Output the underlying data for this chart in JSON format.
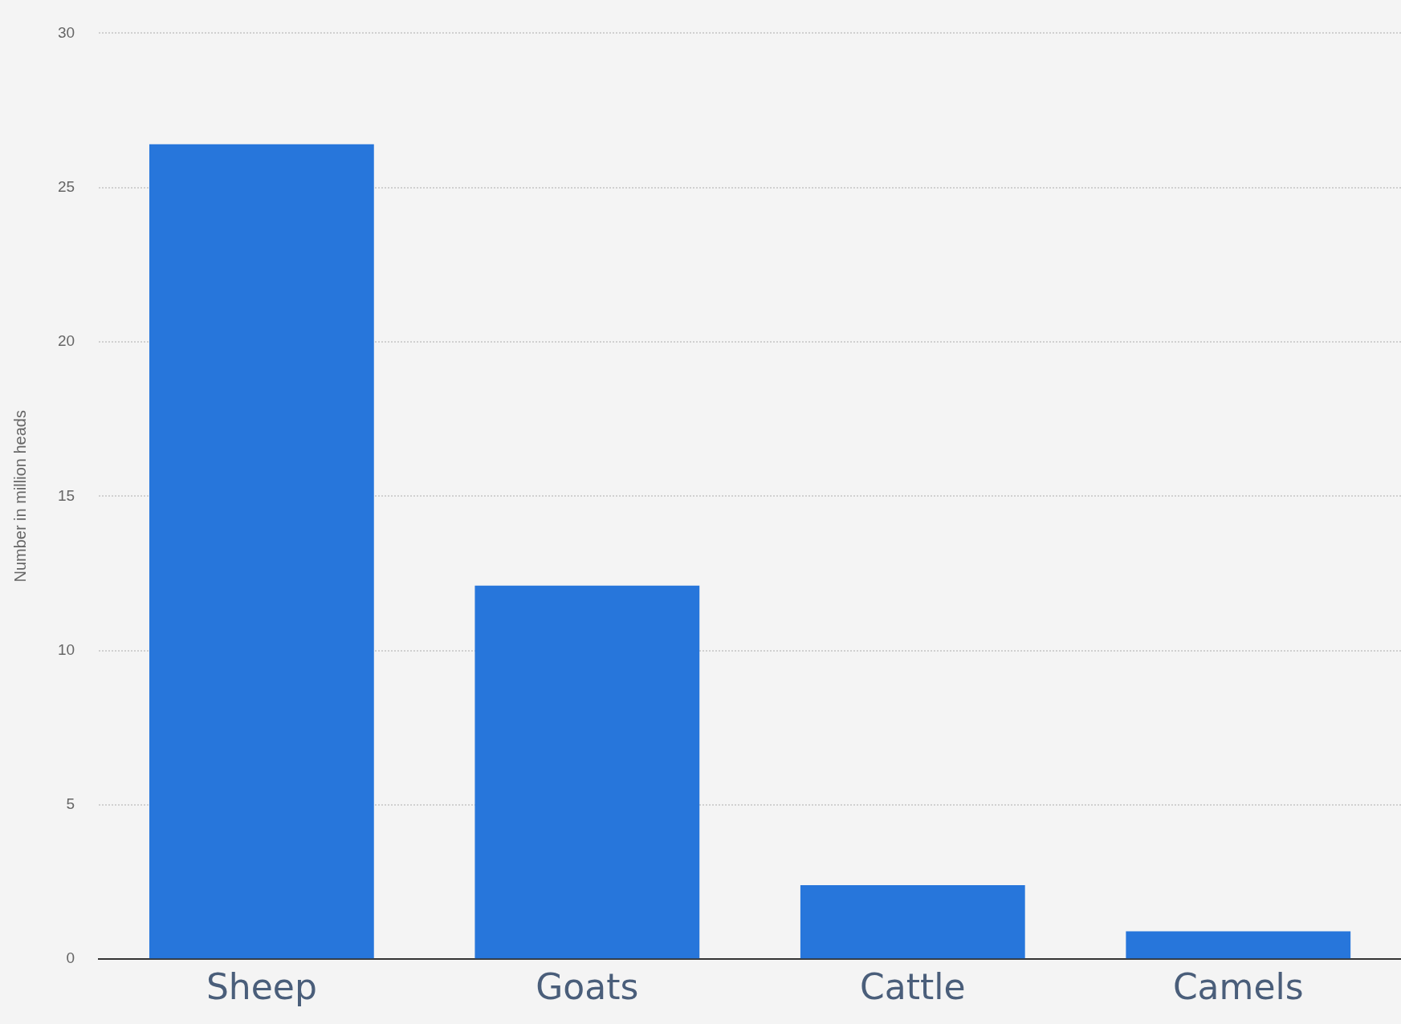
{
  "chart_data": {
    "type": "bar",
    "ylabel": "Number in million heads",
    "categories": [
      "Sheep",
      "Goats",
      "Cattle",
      "Camels"
    ],
    "values": [
      26.4,
      12.1,
      2.4,
      0.9
    ],
    "color": "#2776db",
    "ylim": [
      0,
      30
    ],
    "yticks": [
      0,
      5,
      10,
      15,
      20,
      25,
      30
    ],
    "grid": "y",
    "legend": false
  }
}
